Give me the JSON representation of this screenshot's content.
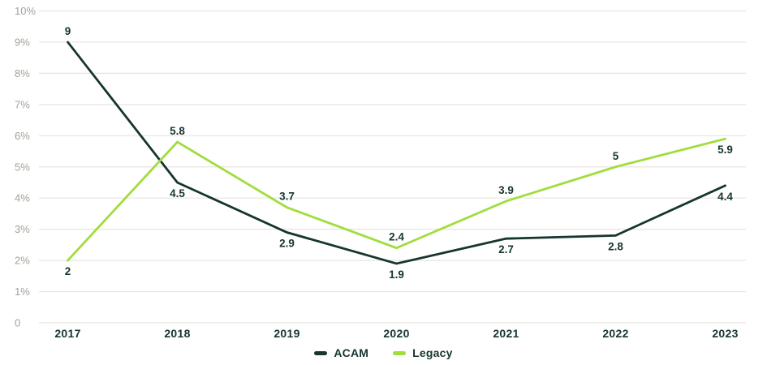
{
  "chart_data": {
    "type": "line",
    "title": "",
    "x_categories": [
      "2017",
      "2018",
      "2019",
      "2020",
      "2021",
      "2022",
      "2023"
    ],
    "y_axis": {
      "min": 0,
      "max": 10,
      "step": 1,
      "tick_labels": [
        "0",
        "1%",
        "2%",
        "3%",
        "4%",
        "5%",
        "6%",
        "7%",
        "8%",
        "9%",
        "10%"
      ]
    },
    "grid": true,
    "legend_position": "bottom-center",
    "series": [
      {
        "name": "ACAM",
        "color": "#16352f",
        "values": [
          9,
          4.5,
          2.9,
          1.9,
          2.7,
          2.8,
          4.4
        ],
        "point_labels": [
          "9",
          "4.5",
          "2.9",
          "1.9",
          "2.7",
          "2.8",
          "4.4"
        ],
        "label_placement": [
          "above",
          "below",
          "below",
          "below",
          "below",
          "below",
          "below"
        ]
      },
      {
        "name": "Legacy",
        "color": "#a0dd3d",
        "values": [
          2,
          5.8,
          3.7,
          2.4,
          3.9,
          5,
          5.9
        ],
        "point_labels": [
          "2",
          "5.8",
          "3.7",
          "2.4",
          "3.9",
          "5",
          "5.9"
        ],
        "label_placement": [
          "below",
          "above",
          "above",
          "above",
          "above",
          "above",
          "below"
        ]
      }
    ],
    "colors": {
      "axis_text": "#a3a199",
      "grid_line": "#e8e5dd",
      "label_text": "#16352f",
      "background": "#ffffff"
    }
  }
}
